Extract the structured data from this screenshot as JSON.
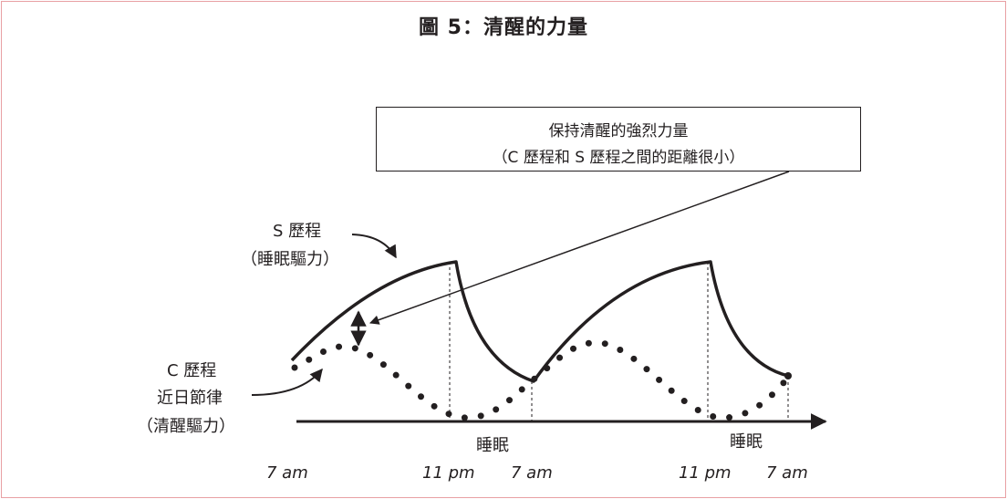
{
  "title": "圖 5：清醒的力量",
  "callout": {
    "line1": "保持清醒的強烈力量",
    "line2": "（C 歷程和 S 歷程之間的距離很小）"
  },
  "s_process": {
    "name": "S 歷程",
    "desc": "（睡眠驅力）"
  },
  "c_process": {
    "name": "C 歷程",
    "subname": "近日節律",
    "desc": "（清醒驅力）"
  },
  "sleep_labels": [
    "睡眠",
    "睡眠"
  ],
  "time_labels": [
    "7 am",
    "11 pm",
    "7 am",
    "11 pm",
    "7 am"
  ],
  "colors": {
    "ink": "#231f20",
    "border": "#e8a0a3"
  }
}
